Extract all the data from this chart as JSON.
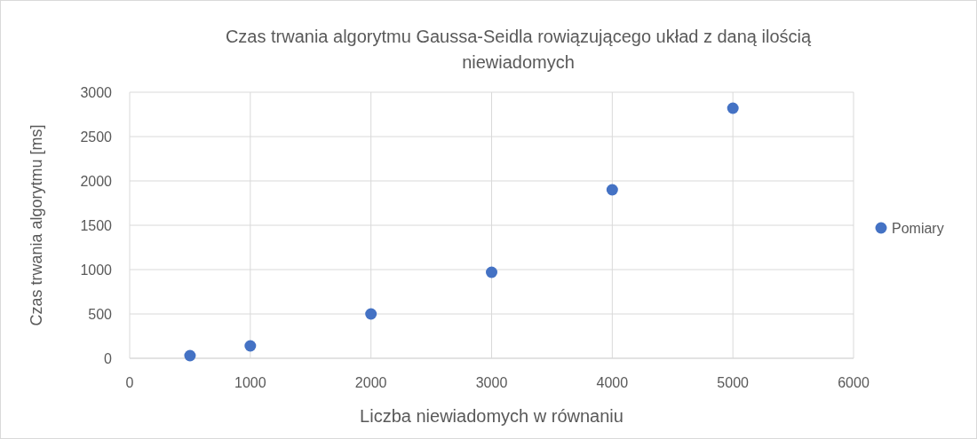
{
  "chart_data": {
    "type": "scatter",
    "title": "Czas trwania algorytmu Gaussa-Seidla rowiązującego układ z daną ilością niewiadomych",
    "xlabel": "Liczba niewiadomych w równaniu",
    "ylabel": "Czas trwania algorytmu [ms]",
    "x": [
      500,
      1000,
      2000,
      3000,
      4000,
      5000
    ],
    "series": [
      {
        "name": "Pomiary",
        "color": "#4472c4",
        "values": [
          30,
          140,
          500,
          970,
          1900,
          2820
        ]
      }
    ],
    "xlim": [
      0,
      6000
    ],
    "xticks": [
      0,
      1000,
      2000,
      3000,
      4000,
      5000,
      6000
    ],
    "ylim": [
      0,
      3000
    ],
    "yticks": [
      0,
      500,
      1000,
      1500,
      2000,
      2500,
      3000
    ],
    "grid": true,
    "legend": "right",
    "marker": "circle"
  }
}
